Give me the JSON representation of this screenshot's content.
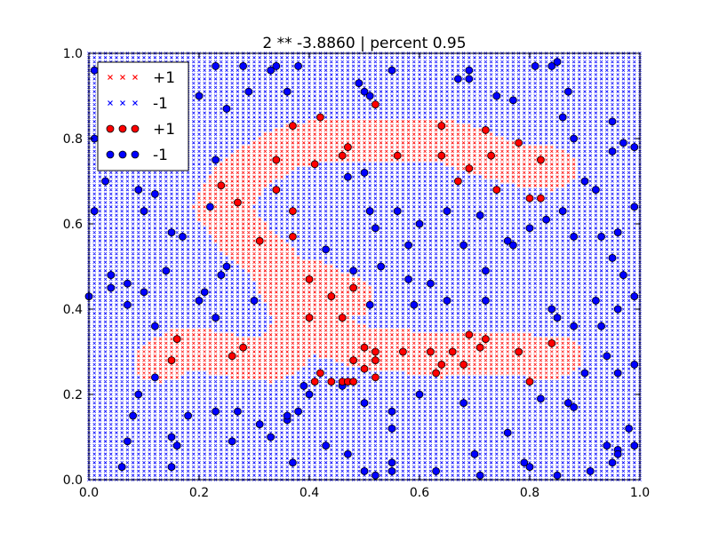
{
  "chart_data": {
    "type": "scatter",
    "title": "2 ** -3.8860 | percent 0.95",
    "xlabel": "",
    "ylabel": "",
    "xlim": [
      0.0,
      1.0
    ],
    "ylim": [
      0.0,
      1.0
    ],
    "x_ticks": [
      "0.0",
      "0.2",
      "0.4",
      "0.6",
      "0.8",
      "1.0"
    ],
    "y_ticks": [
      "0.0",
      "0.2",
      "0.4",
      "0.6",
      "0.8",
      "1.0"
    ],
    "grid": false,
    "legend": {
      "placement": "top-left",
      "entries": [
        {
          "label": "+1",
          "marker": "x",
          "color": "#ff0000"
        },
        {
          "label": "-1",
          "marker": "x",
          "color": "#0000ff"
        },
        {
          "label": "+1",
          "marker": "o",
          "color": "#ff0000"
        },
        {
          "label": "-1",
          "marker": "o",
          "color": "#0000ff"
        }
      ]
    },
    "colors": {
      "positive": "#ff0000",
      "negative": "#0000ff",
      "edge": "#000000"
    },
    "grid_background": {
      "description": "dense grid of x markers colored by predicted class",
      "step": 0.01,
      "positive_region_centerline": [
        [
          0.13,
          0.28
        ],
        [
          0.18,
          0.31
        ],
        [
          0.26,
          0.29
        ],
        [
          0.33,
          0.28
        ],
        [
          0.36,
          0.31
        ],
        [
          0.38,
          0.36
        ],
        [
          0.42,
          0.36
        ],
        [
          0.45,
          0.33
        ],
        [
          0.5,
          0.31
        ],
        [
          0.58,
          0.3
        ],
        [
          0.64,
          0.29
        ],
        [
          0.72,
          0.3
        ],
        [
          0.8,
          0.29
        ],
        [
          0.85,
          0.29
        ]
      ],
      "positive_region_upper_arm": [
        [
          0.39,
          0.36
        ],
        [
          0.37,
          0.42
        ],
        [
          0.34,
          0.5
        ],
        [
          0.28,
          0.57
        ],
        [
          0.24,
          0.64
        ],
        [
          0.28,
          0.72
        ],
        [
          0.36,
          0.78
        ],
        [
          0.44,
          0.8
        ],
        [
          0.5,
          0.8
        ],
        [
          0.58,
          0.8
        ],
        [
          0.66,
          0.79
        ],
        [
          0.72,
          0.76
        ],
        [
          0.78,
          0.74
        ],
        [
          0.84,
          0.73
        ]
      ],
      "positive_region_diagonal": [
        [
          0.37,
          0.42
        ],
        [
          0.4,
          0.47
        ],
        [
          0.44,
          0.44
        ],
        [
          0.47,
          0.43
        ]
      ]
    },
    "points_positive": [
      [
        0.52,
        0.88
      ],
      [
        0.42,
        0.85
      ],
      [
        0.37,
        0.83
      ],
      [
        0.64,
        0.83
      ],
      [
        0.72,
        0.82
      ],
      [
        0.47,
        0.78
      ],
      [
        0.78,
        0.79
      ],
      [
        0.46,
        0.76
      ],
      [
        0.56,
        0.76
      ],
      [
        0.64,
        0.76
      ],
      [
        0.73,
        0.76
      ],
      [
        0.34,
        0.75
      ],
      [
        0.41,
        0.74
      ],
      [
        0.82,
        0.75
      ],
      [
        0.67,
        0.7
      ],
      [
        0.69,
        0.73
      ],
      [
        0.24,
        0.69
      ],
      [
        0.34,
        0.68
      ],
      [
        0.74,
        0.68
      ],
      [
        0.27,
        0.65
      ],
      [
        0.8,
        0.66
      ],
      [
        0.82,
        0.66
      ],
      [
        0.37,
        0.63
      ],
      [
        0.31,
        0.56
      ],
      [
        0.37,
        0.57
      ],
      [
        0.4,
        0.47
      ],
      [
        0.48,
        0.45
      ],
      [
        0.44,
        0.43
      ],
      [
        0.4,
        0.38
      ],
      [
        0.46,
        0.38
      ],
      [
        0.69,
        0.34
      ],
      [
        0.16,
        0.33
      ],
      [
        0.72,
        0.33
      ],
      [
        0.5,
        0.31
      ],
      [
        0.28,
        0.31
      ],
      [
        0.52,
        0.3
      ],
      [
        0.57,
        0.3
      ],
      [
        0.62,
        0.3
      ],
      [
        0.66,
        0.3
      ],
      [
        0.71,
        0.31
      ],
      [
        0.78,
        0.3
      ],
      [
        0.84,
        0.32
      ],
      [
        0.26,
        0.29
      ],
      [
        0.48,
        0.28
      ],
      [
        0.52,
        0.28
      ],
      [
        0.15,
        0.28
      ],
      [
        0.64,
        0.27
      ],
      [
        0.68,
        0.27
      ],
      [
        0.63,
        0.25
      ],
      [
        0.5,
        0.26
      ],
      [
        0.42,
        0.25
      ],
      [
        0.52,
        0.24
      ],
      [
        0.44,
        0.23
      ],
      [
        0.46,
        0.23
      ],
      [
        0.47,
        0.23
      ],
      [
        0.48,
        0.23
      ],
      [
        0.41,
        0.23
      ],
      [
        0.8,
        0.23
      ]
    ],
    "points_negative": [
      [
        0.01,
        0.96
      ],
      [
        0.23,
        0.97
      ],
      [
        0.28,
        0.97
      ],
      [
        0.34,
        0.97
      ],
      [
        0.38,
        0.97
      ],
      [
        0.49,
        0.93
      ],
      [
        0.5,
        0.91
      ],
      [
        0.51,
        0.9
      ],
      [
        0.55,
        0.96
      ],
      [
        0.67,
        0.94
      ],
      [
        0.69,
        0.96
      ],
      [
        0.69,
        0.94
      ],
      [
        0.74,
        0.9
      ],
      [
        0.77,
        0.89
      ],
      [
        0.81,
        0.97
      ],
      [
        0.84,
        0.97
      ],
      [
        0.85,
        0.98
      ],
      [
        0.87,
        0.91
      ],
      [
        0.86,
        0.85
      ],
      [
        0.95,
        0.84
      ],
      [
        0.97,
        0.79
      ],
      [
        0.99,
        0.78
      ],
      [
        0.88,
        0.8
      ],
      [
        0.95,
        0.77
      ],
      [
        0.12,
        0.91
      ],
      [
        0.15,
        0.88
      ],
      [
        0.15,
        0.84
      ],
      [
        0.2,
        0.9
      ],
      [
        0.25,
        0.87
      ],
      [
        0.29,
        0.91
      ],
      [
        0.33,
        0.96
      ],
      [
        0.36,
        0.91
      ],
      [
        0.01,
        0.8
      ],
      [
        0.23,
        0.75
      ],
      [
        0.03,
        0.7
      ],
      [
        0.09,
        0.68
      ],
      [
        0.12,
        0.67
      ],
      [
        0.1,
        0.63
      ],
      [
        0.01,
        0.63
      ],
      [
        0.22,
        0.64
      ],
      [
        0.47,
        0.71
      ],
      [
        0.5,
        0.72
      ],
      [
        0.92,
        0.68
      ],
      [
        0.9,
        0.7
      ],
      [
        0.99,
        0.64
      ],
      [
        0.96,
        0.58
      ],
      [
        0.93,
        0.57
      ],
      [
        0.88,
        0.57
      ],
      [
        0.86,
        0.63
      ],
      [
        0.83,
        0.61
      ],
      [
        0.8,
        0.59
      ],
      [
        0.76,
        0.56
      ],
      [
        0.68,
        0.55
      ],
      [
        0.58,
        0.55
      ],
      [
        0.53,
        0.5
      ],
      [
        0.43,
        0.54
      ],
      [
        0.48,
        0.49
      ],
      [
        0.52,
        0.59
      ],
      [
        0.51,
        0.63
      ],
      [
        0.56,
        0.63
      ],
      [
        0.6,
        0.6
      ],
      [
        0.65,
        0.63
      ],
      [
        0.71,
        0.62
      ],
      [
        0.72,
        0.49
      ],
      [
        0.77,
        0.55
      ],
      [
        0.62,
        0.46
      ],
      [
        0.58,
        0.47
      ],
      [
        0.51,
        0.41
      ],
      [
        0.59,
        0.41
      ],
      [
        0.65,
        0.42
      ],
      [
        0.72,
        0.42
      ],
      [
        0.84,
        0.4
      ],
      [
        0.85,
        0.38
      ],
      [
        0.88,
        0.36
      ],
      [
        0.92,
        0.42
      ],
      [
        0.96,
        0.4
      ],
      [
        0.99,
        0.43
      ],
      [
        0.15,
        0.58
      ],
      [
        0.17,
        0.57
      ],
      [
        0.14,
        0.49
      ],
      [
        0.21,
        0.44
      ],
      [
        0.24,
        0.48
      ],
      [
        0.25,
        0.5
      ],
      [
        0.07,
        0.46
      ],
      [
        0.04,
        0.45
      ],
      [
        0.04,
        0.48
      ],
      [
        0.1,
        0.44
      ],
      [
        0.0,
        0.43
      ],
      [
        0.07,
        0.41
      ],
      [
        0.12,
        0.36
      ],
      [
        0.2,
        0.42
      ],
      [
        0.23,
        0.38
      ],
      [
        0.3,
        0.42
      ],
      [
        0.95,
        0.52
      ],
      [
        0.97,
        0.48
      ],
      [
        0.93,
        0.36
      ],
      [
        0.94,
        0.29
      ],
      [
        0.9,
        0.25
      ],
      [
        0.96,
        0.25
      ],
      [
        0.99,
        0.27
      ],
      [
        0.87,
        0.18
      ],
      [
        0.88,
        0.17
      ],
      [
        0.98,
        0.12
      ],
      [
        0.99,
        0.08
      ],
      [
        0.94,
        0.08
      ],
      [
        0.96,
        0.07
      ],
      [
        0.96,
        0.06
      ],
      [
        0.95,
        0.04
      ],
      [
        0.91,
        0.02
      ],
      [
        0.82,
        0.19
      ],
      [
        0.68,
        0.18
      ],
      [
        0.6,
        0.2
      ],
      [
        0.55,
        0.16
      ],
      [
        0.55,
        0.12
      ],
      [
        0.5,
        0.18
      ],
      [
        0.47,
        0.06
      ],
      [
        0.43,
        0.08
      ],
      [
        0.38,
        0.16
      ],
      [
        0.36,
        0.14
      ],
      [
        0.36,
        0.15
      ],
      [
        0.33,
        0.1
      ],
      [
        0.37,
        0.04
      ],
      [
        0.31,
        0.13
      ],
      [
        0.27,
        0.16
      ],
      [
        0.26,
        0.09
      ],
      [
        0.23,
        0.16
      ],
      [
        0.18,
        0.15
      ],
      [
        0.16,
        0.08
      ],
      [
        0.15,
        0.1
      ],
      [
        0.12,
        0.24
      ],
      [
        0.09,
        0.2
      ],
      [
        0.08,
        0.15
      ],
      [
        0.07,
        0.09
      ],
      [
        0.06,
        0.03
      ],
      [
        0.15,
        0.03
      ],
      [
        0.39,
        0.22
      ],
      [
        0.4,
        0.2
      ],
      [
        0.46,
        0.22
      ],
      [
        0.5,
        0.02
      ],
      [
        0.52,
        0.01
      ],
      [
        0.55,
        0.04
      ],
      [
        0.55,
        0.02
      ],
      [
        0.63,
        0.02
      ],
      [
        0.71,
        0.01
      ],
      [
        0.85,
        0.01
      ],
      [
        0.7,
        0.06
      ],
      [
        0.76,
        0.11
      ],
      [
        0.79,
        0.04
      ],
      [
        0.8,
        0.03
      ]
    ]
  }
}
